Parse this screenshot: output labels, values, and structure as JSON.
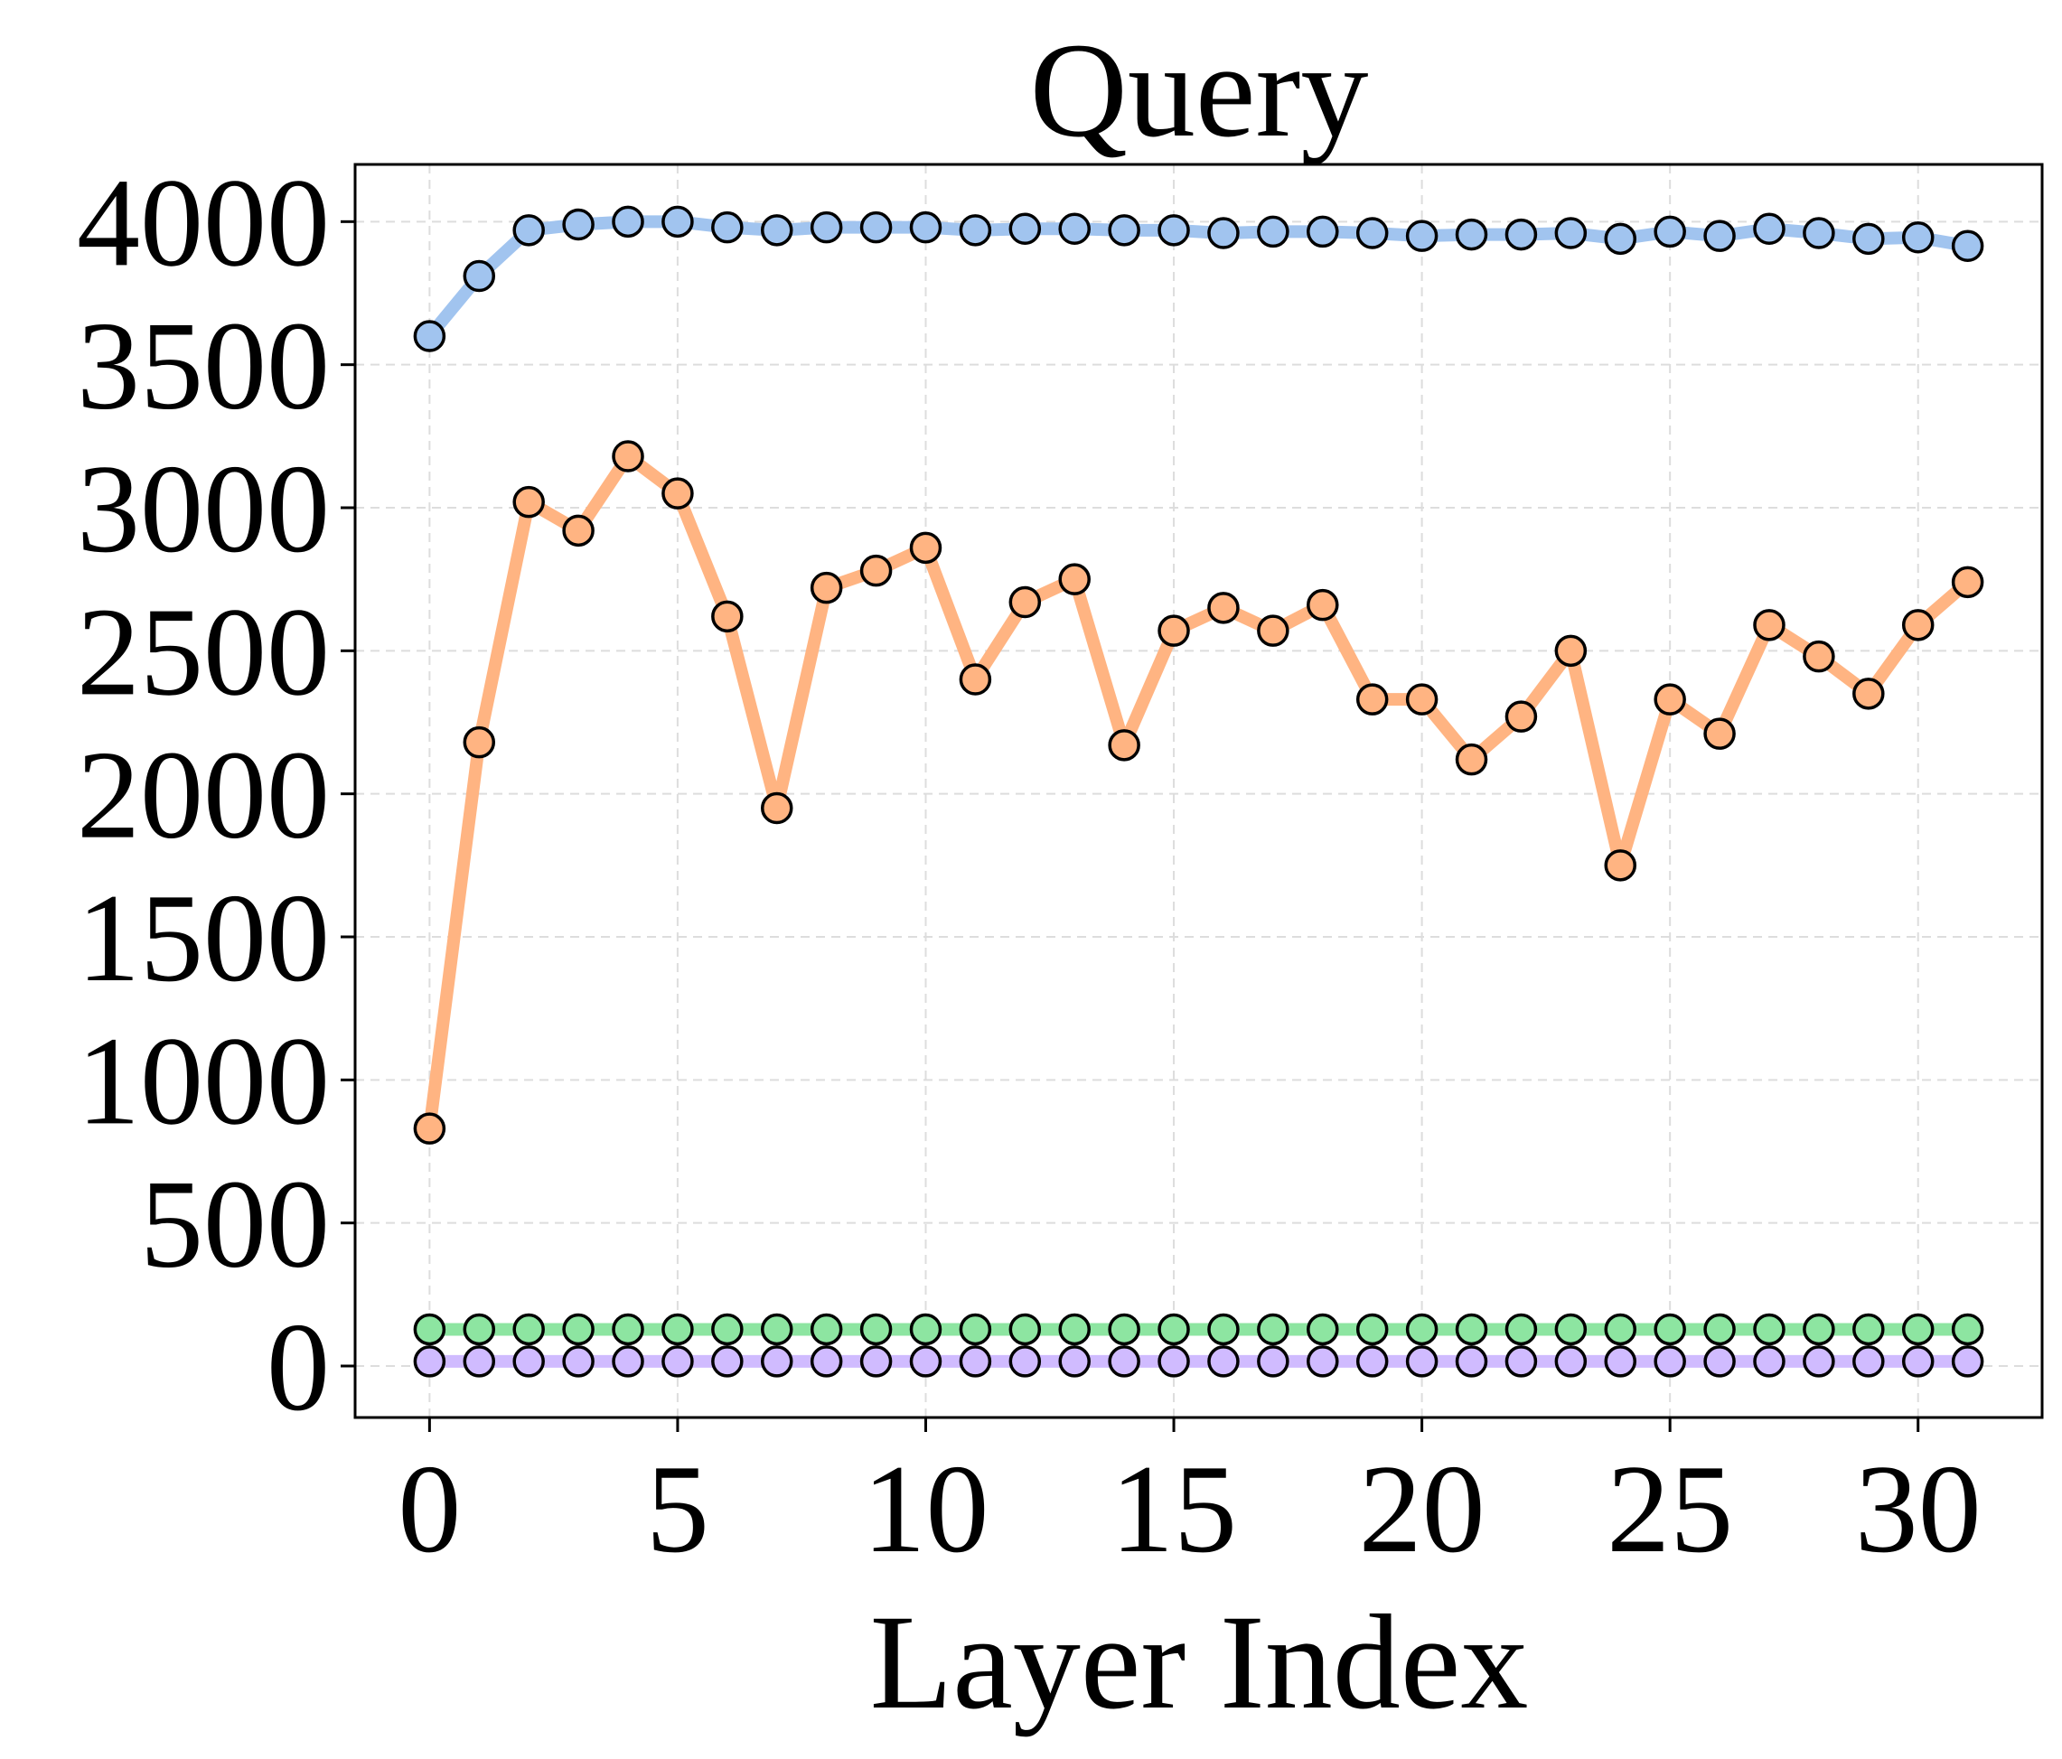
{
  "chart_data": {
    "type": "line",
    "title": "Query",
    "xlabel": "Layer Index",
    "ylabel": "",
    "xlim": [
      -1.5,
      32.5
    ],
    "ylim": [
      -180,
      4200
    ],
    "xticks": [
      0,
      5,
      10,
      15,
      20,
      25,
      30
    ],
    "yticks": [
      0,
      500,
      1000,
      1500,
      2000,
      2500,
      3000,
      3500,
      4000
    ],
    "grid": true,
    "legend": "none",
    "x": [
      0,
      1,
      2,
      3,
      4,
      5,
      6,
      7,
      8,
      9,
      10,
      11,
      12,
      13,
      14,
      15,
      16,
      17,
      18,
      19,
      20,
      21,
      22,
      23,
      24,
      25,
      26,
      27,
      28,
      29,
      30,
      31
    ],
    "series": [
      {
        "color": "#a1c4ef",
        "values": [
          3600,
          3810,
          3970,
          3990,
          4000,
          4000,
          3980,
          3970,
          3980,
          3980,
          3980,
          3970,
          3975,
          3975,
          3970,
          3970,
          3960,
          3965,
          3965,
          3960,
          3950,
          3955,
          3955,
          3960,
          3940,
          3965,
          3950,
          3975,
          3960,
          3940,
          3945,
          3915
        ]
      },
      {
        "color": "#ffb482",
        "values": [
          830,
          2180,
          3020,
          2920,
          3180,
          3050,
          2620,
          1950,
          2720,
          2780,
          2860,
          2400,
          2670,
          2750,
          2170,
          2570,
          2650,
          2570,
          2660,
          2330,
          2330,
          2120,
          2270,
          2500,
          1750,
          2330,
          2210,
          2590,
          2480,
          2350,
          2590,
          2740
        ]
      },
      {
        "color": "#8de5a1",
        "values": [
          128,
          128,
          128,
          128,
          128,
          128,
          128,
          128,
          128,
          128,
          128,
          128,
          128,
          128,
          128,
          128,
          128,
          128,
          128,
          128,
          128,
          128,
          128,
          128,
          128,
          128,
          128,
          128,
          128,
          128,
          128,
          128
        ]
      },
      {
        "color": "#d0bbff",
        "values": [
          16,
          16,
          16,
          16,
          16,
          16,
          16,
          16,
          16,
          16,
          16,
          16,
          16,
          16,
          16,
          16,
          16,
          16,
          16,
          16,
          16,
          16,
          16,
          16,
          16,
          16,
          16,
          16,
          16,
          16,
          16,
          16
        ]
      }
    ]
  }
}
